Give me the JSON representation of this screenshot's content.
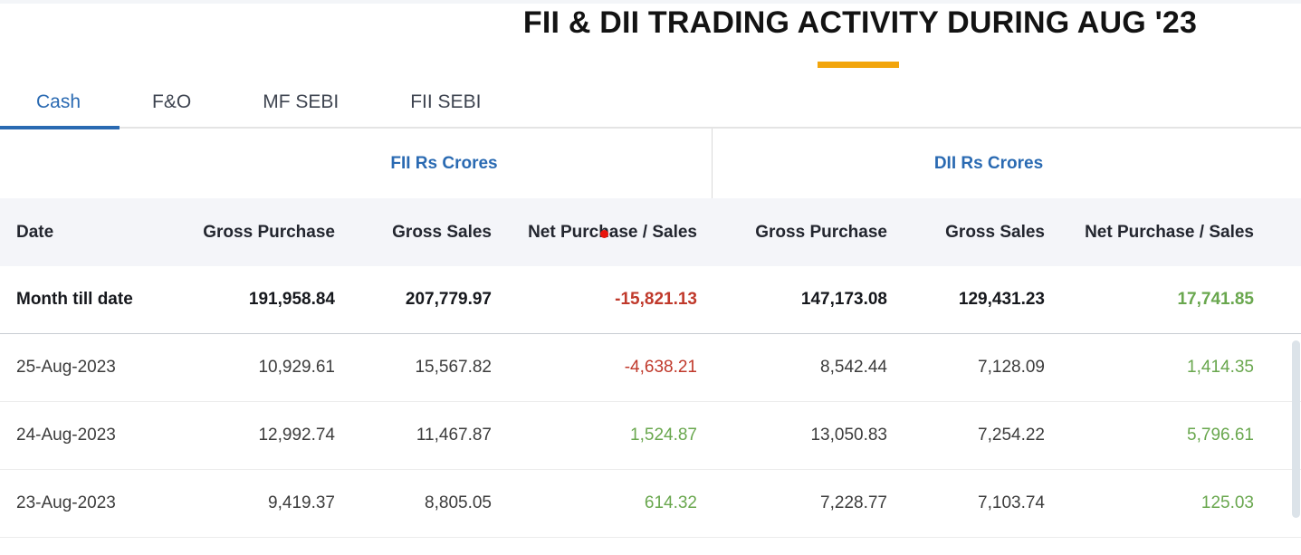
{
  "header": {
    "title": "FII & DII TRADING ACTIVITY DURING AUG '23"
  },
  "tabs": {
    "items": [
      {
        "label": "Cash",
        "active": true
      },
      {
        "label": "F&O",
        "active": false
      },
      {
        "label": "MF SEBI",
        "active": false
      },
      {
        "label": "FII SEBI",
        "active": false
      }
    ]
  },
  "table": {
    "group_headers": {
      "fii": "FII Rs Crores",
      "dii": "DII Rs Crores"
    },
    "column_headers": {
      "date": "Date",
      "gross_purchase": "Gross Purchase",
      "gross_sales": "Gross Sales",
      "net": "Net Purchase / Sales"
    },
    "rows": [
      {
        "date": "Month till date",
        "fii_gross_purchase": "191,958.84",
        "fii_gross_sales": "207,779.97",
        "fii_net": "-15,821.13",
        "dii_gross_purchase": "147,173.08",
        "dii_gross_sales": "129,431.23",
        "dii_net": "17,741.85"
      },
      {
        "date": "25-Aug-2023",
        "fii_gross_purchase": "10,929.61",
        "fii_gross_sales": "15,567.82",
        "fii_net": "-4,638.21",
        "dii_gross_purchase": "8,542.44",
        "dii_gross_sales": "7,128.09",
        "dii_net": "1,414.35"
      },
      {
        "date": "24-Aug-2023",
        "fii_gross_purchase": "12,992.74",
        "fii_gross_sales": "11,467.87",
        "fii_net": "1,524.87",
        "dii_gross_purchase": "13,050.83",
        "dii_gross_sales": "7,254.22",
        "dii_net": "5,796.61"
      },
      {
        "date": "23-Aug-2023",
        "fii_gross_purchase": "9,419.37",
        "fii_gross_sales": "8,805.05",
        "fii_net": "614.32",
        "dii_gross_purchase": "7,228.77",
        "dii_gross_sales": "7,103.74",
        "dii_net": "125.03"
      }
    ]
  },
  "colors": {
    "accent-orange": "#f2a50c",
    "active-blue": "#2a6ab2",
    "negative-red": "#c0392b",
    "positive-green": "#69a74e"
  }
}
